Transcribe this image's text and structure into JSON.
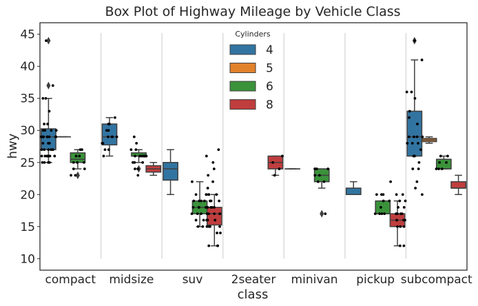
{
  "chart_data": {
    "type": "box",
    "title": "Box Plot of Highway Mileage by Vehicle Class",
    "xlabel": "class",
    "ylabel": "hwy",
    "ylim": [
      8.2,
      46.8
    ],
    "yticks": [
      10,
      15,
      20,
      25,
      30,
      35,
      40,
      45
    ],
    "categories": [
      "compact",
      "midsize",
      "suv",
      "2seater",
      "minivan",
      "pickup",
      "subcompact"
    ],
    "legend": {
      "title": "Cylinders",
      "placement": "top-center",
      "entries": [
        {
          "label": "4",
          "color": "#3274a1"
        },
        {
          "label": "5",
          "color": "#e1812c"
        },
        {
          "label": "6",
          "color": "#3a923a"
        },
        {
          "label": "8",
          "color": "#c03d3e"
        }
      ]
    },
    "series_offsets": {
      "4": -0.36,
      "5": -0.12,
      "6": 0.12,
      "8": 0.36
    },
    "boxes": [
      {
        "category": "compact",
        "cyl": "4",
        "whislo": 25,
        "q1": 27,
        "med": 29,
        "q3": 30.25,
        "whishi": 35,
        "fliers": [
          37,
          44
        ]
      },
      {
        "category": "compact",
        "cyl": "5",
        "whislo": 29,
        "q1": 29,
        "med": 29,
        "q3": 29,
        "whishi": 29,
        "fliers": []
      },
      {
        "category": "compact",
        "cyl": "6",
        "whislo": 24,
        "q1": 25,
        "med": 25.5,
        "q3": 26.5,
        "whishi": 27,
        "fliers": [
          23
        ]
      },
      {
        "category": "midsize",
        "cyl": "4",
        "whislo": 26,
        "q1": 27.75,
        "med": 29,
        "q3": 31,
        "whishi": 32,
        "fliers": []
      },
      {
        "category": "midsize",
        "cyl": "6",
        "whislo": 25,
        "q1": 26,
        "med": 26,
        "q3": 26.5,
        "whishi": 27,
        "fliers": [
          24
        ]
      },
      {
        "category": "midsize",
        "cyl": "8",
        "whislo": 23,
        "q1": 23.5,
        "med": 24,
        "q3": 24.5,
        "whishi": 25,
        "fliers": []
      },
      {
        "category": "suv",
        "cyl": "4",
        "whislo": 20,
        "q1": 22.25,
        "med": 24,
        "q3": 25,
        "whishi": 27,
        "fliers": []
      },
      {
        "category": "suv",
        "cyl": "6",
        "whislo": 15,
        "q1": 17,
        "med": 18,
        "q3": 19,
        "whishi": 22,
        "fliers": []
      },
      {
        "category": "suv",
        "cyl": "8",
        "whislo": 12,
        "q1": 15.25,
        "med": 17,
        "q3": 18,
        "whishi": 20,
        "fliers": []
      },
      {
        "category": "2seater",
        "cyl": "8",
        "whislo": 23,
        "q1": 24,
        "med": 25,
        "q3": 26,
        "whishi": 26,
        "fliers": []
      },
      {
        "category": "minivan",
        "cyl": "4",
        "whislo": 24,
        "q1": 24,
        "med": 24,
        "q3": 24,
        "whishi": 24,
        "fliers": []
      },
      {
        "category": "minivan",
        "cyl": "6",
        "whislo": 21,
        "q1": 22,
        "med": 23,
        "q3": 24,
        "whishi": 24,
        "fliers": [
          17
        ]
      },
      {
        "category": "pickup",
        "cyl": "4",
        "whislo": 20,
        "q1": 20,
        "med": 20,
        "q3": 21,
        "whishi": 22,
        "fliers": []
      },
      {
        "category": "pickup",
        "cyl": "6",
        "whislo": 17,
        "q1": 17,
        "med": 17,
        "q3": 19,
        "whishi": 19,
        "fliers": []
      },
      {
        "category": "pickup",
        "cyl": "8",
        "whislo": 12,
        "q1": 15,
        "med": 16,
        "q3": 17,
        "whishi": 19,
        "fliers": []
      },
      {
        "category": "subcompact",
        "cyl": "4",
        "whislo": 26,
        "q1": 26,
        "med": 29,
        "q3": 33,
        "whishi": 41,
        "fliers": [
          44
        ]
      },
      {
        "category": "subcompact",
        "cyl": "5",
        "whislo": 28,
        "q1": 28.25,
        "med": 28.5,
        "q3": 28.75,
        "whishi": 29,
        "fliers": []
      },
      {
        "category": "subcompact",
        "cyl": "6",
        "whislo": 24,
        "q1": 24,
        "med": 24,
        "q3": 25.5,
        "whishi": 26,
        "fliers": []
      },
      {
        "category": "subcompact",
        "cyl": "8",
        "whislo": 20,
        "q1": 21,
        "med": 21,
        "q3": 22,
        "whishi": 23,
        "fliers": []
      }
    ],
    "strip_points": [
      {
        "category": "compact",
        "cyl": "4",
        "values": [
          25,
          25,
          25,
          25,
          26,
          26,
          26,
          26,
          26,
          26,
          26,
          27,
          27,
          27,
          27,
          27,
          27,
          28,
          28,
          28,
          29,
          29,
          29,
          29,
          29,
          29,
          29,
          29,
          29,
          29,
          30,
          30,
          30,
          30,
          31,
          31,
          33,
          35,
          35,
          37,
          44
        ]
      },
      {
        "category": "compact",
        "cyl": "6",
        "values": [
          23,
          23,
          24,
          24,
          25,
          25,
          25,
          26,
          26,
          27,
          27
        ]
      },
      {
        "category": "midsize",
        "cyl": "4",
        "values": [
          26,
          27,
          27,
          28,
          28,
          29,
          29,
          29,
          29,
          30,
          30,
          31,
          31,
          32
        ]
      },
      {
        "category": "midsize",
        "cyl": "6",
        "values": [
          23,
          24,
          24,
          25,
          25,
          25,
          26,
          26,
          26,
          26,
          26,
          26,
          26,
          26,
          26,
          27,
          27,
          28,
          29
        ]
      },
      {
        "category": "suv",
        "cyl": "6",
        "values": [
          15,
          15,
          16,
          16,
          17,
          17,
          17,
          17,
          18,
          18,
          18,
          18,
          18,
          19,
          19,
          19,
          19,
          20,
          20,
          22
        ]
      },
      {
        "category": "suv",
        "cyl": "8",
        "values": [
          12,
          12,
          12,
          14,
          14,
          15,
          15,
          15,
          15,
          16,
          16,
          16,
          17,
          17,
          17,
          17,
          17,
          18,
          18,
          18,
          18,
          19,
          19,
          19,
          20,
          20,
          20,
          20,
          21,
          22,
          23,
          24,
          25,
          26,
          27
        ]
      },
      {
        "category": "2seater",
        "cyl": "8",
        "values": [
          23,
          24,
          25,
          26
        ]
      },
      {
        "category": "minivan",
        "cyl": "6",
        "values": [
          17,
          22,
          22,
          23,
          23,
          24,
          24,
          24,
          24
        ]
      },
      {
        "category": "pickup",
        "cyl": "6",
        "values": [
          17,
          17,
          17,
          17,
          18,
          19,
          19,
          20,
          20,
          20
        ]
      },
      {
        "category": "pickup",
        "cyl": "8",
        "values": [
          12,
          12,
          15,
          15,
          15,
          16,
          16,
          16,
          17,
          17,
          17,
          17,
          18,
          18,
          19,
          19,
          20,
          20,
          22
        ]
      },
      {
        "category": "subcompact",
        "cyl": "4",
        "values": [
          20,
          21,
          22,
          24,
          24,
          25,
          26,
          26,
          27,
          28,
          28,
          28,
          29,
          29,
          29,
          29,
          31,
          32,
          33,
          35,
          36,
          36,
          41,
          44
        ]
      },
      {
        "category": "subcompact",
        "cyl": "6",
        "values": [
          24,
          24,
          24,
          25,
          25,
          26,
          26
        ]
      }
    ]
  }
}
